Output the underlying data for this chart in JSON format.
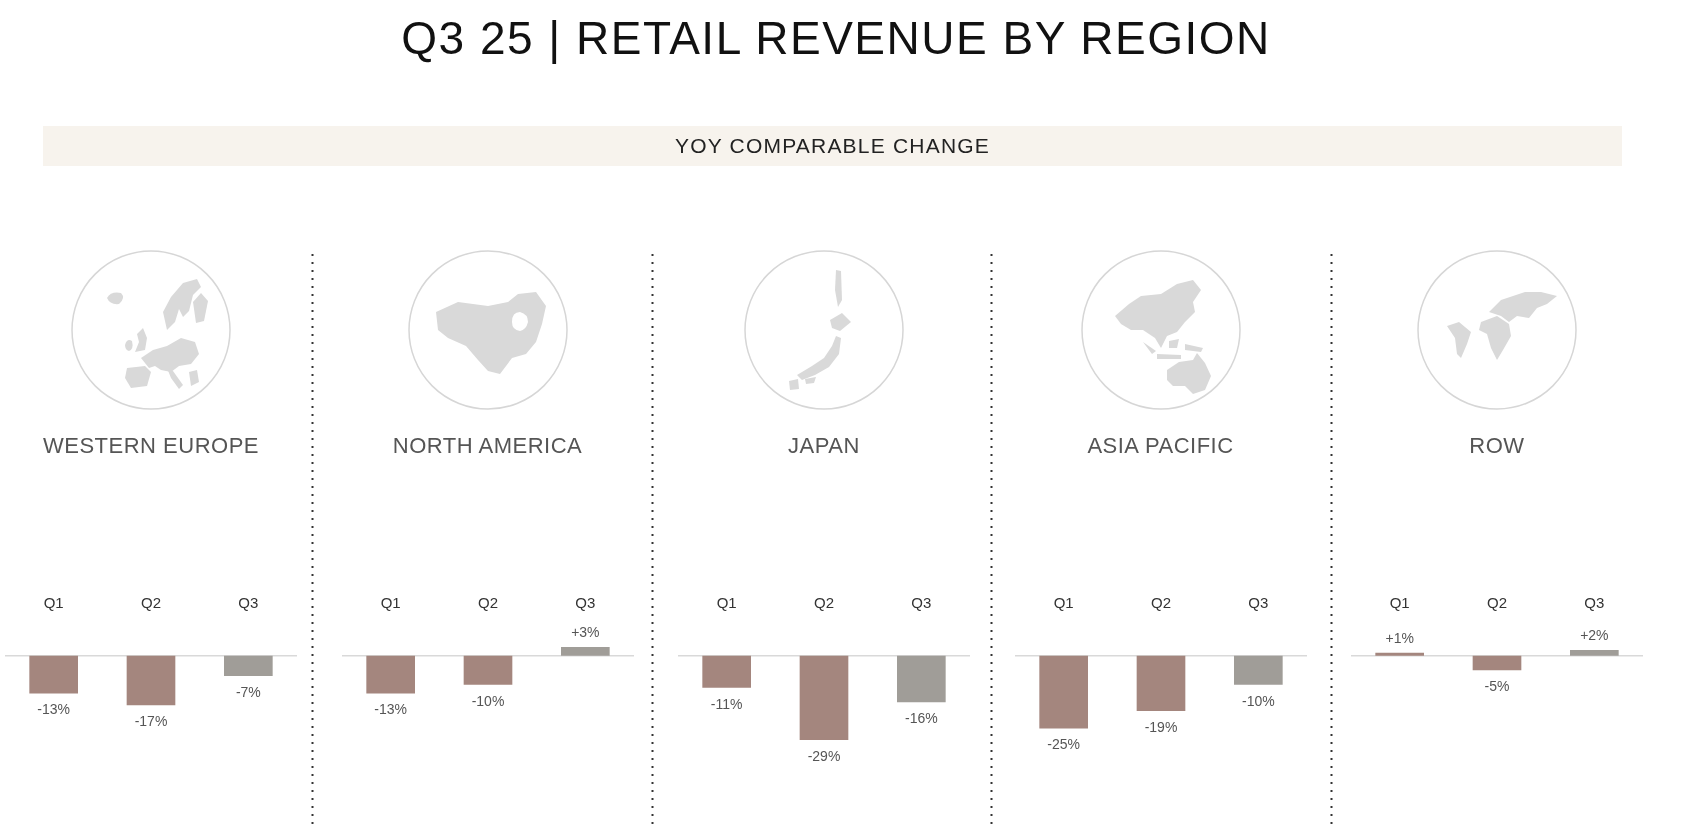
{
  "chart_data": [
    {
      "type": "other",
      "title": "Q3 25 | RETAIL REVENUE BY REGION",
      "subtitle": "YOY COMPARABLE CHANGE"
    },
    {
      "type": "bar",
      "title": "WESTERN EUROPE",
      "categories": [
        "Q1",
        "Q2",
        "Q3"
      ],
      "values": [
        -13,
        -17,
        -7
      ],
      "colors": [
        "#a4867e",
        "#a4867e",
        "#a09d98"
      ],
      "value_labels": [
        "-13%",
        "-17%",
        "-7%"
      ],
      "tick_labels": "x"
    },
    {
      "type": "bar",
      "title": "NORTH AMERICA",
      "categories": [
        "Q1",
        "Q2",
        "Q3"
      ],
      "values": [
        -13,
        -10,
        3
      ],
      "colors": [
        "#a4867e",
        "#a4867e",
        "#a09d98"
      ],
      "value_labels": [
        "-13%",
        "-10%",
        "+3%"
      ],
      "tick_labels": "x"
    },
    {
      "type": "bar",
      "title": "JAPAN",
      "categories": [
        "Q1",
        "Q2",
        "Q3"
      ],
      "values": [
        -11,
        -29,
        -16
      ],
      "colors": [
        "#a4867e",
        "#a4867e",
        "#a09d98"
      ],
      "value_labels": [
        "-11%",
        "-29%",
        "-16%"
      ],
      "tick_labels": "x"
    },
    {
      "type": "bar",
      "title": "ASIA PACIFIC",
      "categories": [
        "Q1",
        "Q2",
        "Q3"
      ],
      "values": [
        -25,
        -19,
        -10
      ],
      "colors": [
        "#a4867e",
        "#a4867e",
        "#a09d98"
      ],
      "value_labels": [
        "-25%",
        "-19%",
        "-10%"
      ],
      "tick_labels": "x"
    },
    {
      "type": "bar",
      "title": "ROW",
      "categories": [
        "Q1",
        "Q2",
        "Q3"
      ],
      "values": [
        1,
        -5,
        2
      ],
      "colors": [
        "#a4867e",
        "#a4867e",
        "#a09d98"
      ],
      "value_labels": [
        "+1%",
        "-5%",
        "+2%"
      ],
      "tick_labels": "x"
    }
  ]
}
